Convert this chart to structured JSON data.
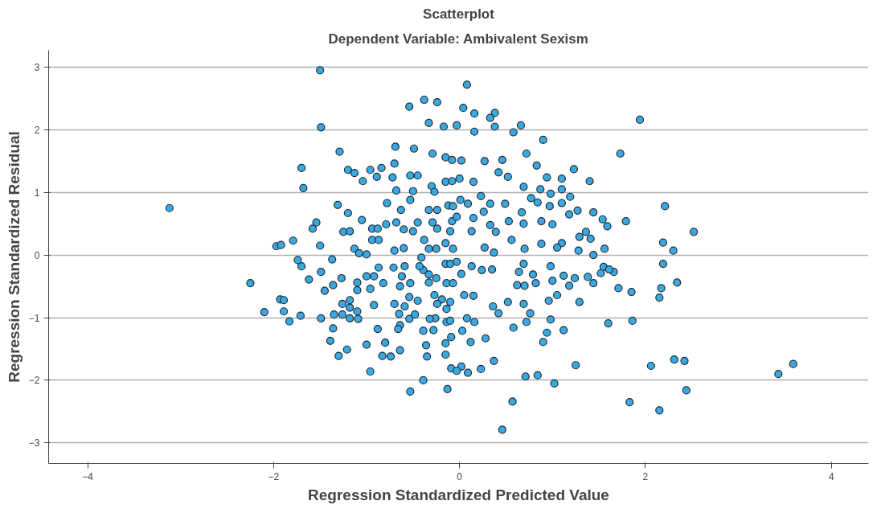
{
  "chart_data": {
    "type": "scatter",
    "title": "Scatterplot",
    "subtitle": "Dependent Variable: Ambivalent Sexism",
    "xlabel": "Regression Standardized Predicted Value",
    "ylabel": "Regression Standardized Residual",
    "xlim": [
      -4.42,
      4.4
    ],
    "ylim": [
      -3.33,
      3.27
    ],
    "xticks": [
      -4,
      -2,
      0,
      2,
      4
    ],
    "yticks": [
      -3,
      -2,
      -1,
      0,
      1,
      2,
      3
    ],
    "grid": "y",
    "marker": "circle",
    "series": [
      {
        "color": "#3ba8e0",
        "x": [
          -3.12,
          -2.25,
          -2.1,
          -1.93,
          -1.89,
          -1.89,
          -1.83,
          -1.71,
          -1.49,
          -1.62,
          -1.7,
          -1.74,
          -1.49,
          -1.37,
          -1.27,
          -1.45,
          -1.36,
          -1.1,
          -1.1,
          -1.0,
          -0.92,
          -0.96,
          -0.82,
          -0.87,
          -0.71,
          -0.59,
          -0.62,
          -0.53,
          -0.64,
          -1.26,
          -1.18,
          -1.18,
          -1.1,
          -1.26,
          -1.35,
          -1.18,
          -1.09,
          -1.36,
          -1.39,
          -1.21,
          -1.3,
          -1.0,
          -0.88,
          -0.8,
          -0.83,
          -0.74,
          -0.64,
          -0.96,
          -0.92,
          -0.7,
          -0.65,
          -0.59,
          -0.54,
          -0.45,
          -0.48,
          -0.54,
          -0.64,
          -0.66,
          -0.39,
          -0.36,
          -0.35,
          -0.39,
          -0.53,
          -0.13,
          -0.15,
          -0.15,
          -0.09,
          -0.09,
          0.02,
          -0.03,
          0.09,
          0.03,
          0.08,
          -0.14,
          -0.1,
          -0.26,
          -0.32,
          -0.28,
          -0.27,
          -0.19,
          -0.14,
          -0.1,
          -0.24,
          -0.33,
          -0.25,
          -0.14,
          -0.07,
          0.05,
          0.02,
          -0.39,
          -0.33,
          -0.43,
          -0.41,
          -0.15,
          -0.1,
          -0.03,
          -1.5,
          -1.49,
          -1.29,
          -1.7,
          -1.68,
          -0.54,
          -0.38,
          -0.24,
          0.08,
          0.04,
          -0.33,
          -0.17,
          -0.03,
          -0.69,
          -0.49,
          -0.29,
          -0.7,
          -0.15,
          -0.08,
          0.02,
          -1.2,
          -1.13,
          -1.04,
          -0.96,
          -0.84,
          -0.89,
          -0.72,
          -0.53,
          -0.45,
          -0.68,
          -0.5,
          -0.3,
          -0.15,
          -0.08,
          0.0,
          -0.27,
          -1.31,
          -1.2,
          -1.54,
          -1.58,
          -0.78,
          -0.63,
          -0.53,
          -1.05,
          -0.94,
          -0.79,
          -0.68,
          -0.6,
          -0.5,
          -0.45,
          -0.33,
          -0.24,
          -0.29,
          -0.24,
          -0.12,
          -0.07,
          0.01,
          -0.08,
          -0.03,
          -0.1,
          -1.79,
          -1.97,
          -1.92,
          -1.5,
          -1.13,
          -1.25,
          -1.18,
          -0.88,
          -0.94,
          -0.87,
          -0.38,
          -0.7,
          -0.6,
          -0.33,
          -0.25,
          -0.15,
          -0.07,
          -1.08,
          -1.0,
          1.94,
          1.73,
          2.21,
          1.79,
          2.52,
          2.19,
          2.3,
          1.4,
          1.23,
          0.9,
          0.72,
          0.66,
          0.58,
          0.38,
          0.38,
          0.16,
          0.33,
          0.16,
          0.46,
          0.27,
          0.42,
          0.52,
          0.15,
          0.94,
          1.1,
          1.1,
          0.83,
          0.69,
          0.87,
          1.19,
          0.98,
          1.27,
          1.44,
          1.54,
          1.59,
          1.36,
          1.41,
          1.29,
          1.56,
          1.44,
          1.28,
          1.1,
          1.05,
          0.88,
          0.7,
          0.56,
          0.37,
          0.27,
          0.88,
          0.69,
          0.53,
          0.33,
          0.39,
          0.13,
          0.23,
          0.09,
          0.33,
          0.49,
          0.67,
          0.77,
          0.84,
          0.97,
          1.1,
          1.18,
          1.0,
          0.26,
          0.15,
          2.19,
          2.34,
          2.15,
          2.17,
          1.85,
          1.71,
          1.86,
          1.6,
          2.31,
          2.42,
          2.06,
          2.44,
          1.83,
          2.15,
          1.25,
          1.02,
          0.71,
          0.84,
          0.57,
          0.46,
          0.37,
          0.23,
          1.12,
          0.9,
          0.94,
          0.98,
          0.72,
          0.58,
          0.28,
          0.12,
          0.16,
          3.43,
          3.59,
          0.35,
          0.13,
          0.24,
          0.15,
          0.36,
          0.42,
          0.52,
          0.62,
          0.69,
          0.76,
          0.82,
          0.7,
          0.64,
          0.79,
          0.98,
          1.0,
          0.96,
          1.05,
          1.12,
          1.24,
          1.18,
          1.29,
          1.38,
          1.44,
          1.52,
          1.55,
          1.66,
          1.61,
          0.69
        ],
        "values": [
          0.75,
          -0.45,
          -0.91,
          -0.71,
          -0.72,
          -0.9,
          -1.06,
          -0.97,
          -1.01,
          -0.39,
          -0.18,
          -0.08,
          -0.27,
          -0.07,
          -0.37,
          -0.57,
          -0.48,
          -0.44,
          -0.56,
          -0.34,
          -0.34,
          -0.54,
          -0.45,
          -0.2,
          -0.2,
          -0.18,
          -0.34,
          -0.45,
          -0.5,
          -0.78,
          -0.72,
          -0.84,
          -0.9,
          -0.95,
          -0.95,
          -1.01,
          -1.02,
          -1.17,
          -1.37,
          -1.51,
          -1.61,
          -1.43,
          -1.18,
          -1.4,
          -1.61,
          -1.62,
          -1.52,
          -1.86,
          -0.8,
          -0.78,
          -0.94,
          -0.82,
          -0.67,
          -0.73,
          -0.95,
          -1.02,
          -1.12,
          -1.18,
          -1.21,
          -1.44,
          -1.62,
          -2.0,
          -2.18,
          -2.14,
          -1.59,
          -1.41,
          -1.31,
          -1.81,
          -1.78,
          -1.85,
          -1.88,
          -1.21,
          -1.01,
          -1.07,
          -1.05,
          -1.01,
          -1.02,
          -1.2,
          -0.64,
          -0.71,
          -0.86,
          -0.75,
          -0.78,
          -0.44,
          -0.37,
          -0.45,
          -0.45,
          -0.64,
          -0.3,
          -0.24,
          -0.31,
          -0.18,
          -0.04,
          -0.14,
          -0.14,
          -0.11,
          2.95,
          2.04,
          1.65,
          1.39,
          1.07,
          2.37,
          2.48,
          2.44,
          2.72,
          2.35,
          2.11,
          2.05,
          2.07,
          1.73,
          1.7,
          1.62,
          1.46,
          1.56,
          1.52,
          1.51,
          1.36,
          1.31,
          1.18,
          1.36,
          1.39,
          1.25,
          1.24,
          1.27,
          1.27,
          1.03,
          1.02,
          1.1,
          1.17,
          1.18,
          1.22,
          1.01,
          0.8,
          0.67,
          0.52,
          0.42,
          0.83,
          0.72,
          0.88,
          0.56,
          0.42,
          0.49,
          0.52,
          0.41,
          0.38,
          0.52,
          0.72,
          0.72,
          0.52,
          0.42,
          0.79,
          0.78,
          0.88,
          0.54,
          0.61,
          0.38,
          0.23,
          0.14,
          0.16,
          0.15,
          0.1,
          0.37,
          0.38,
          0.42,
          0.24,
          0.24,
          0.24,
          0.07,
          0.11,
          0.1,
          0.1,
          0.19,
          0.1,
          0.03,
          0.01,
          2.16,
          1.62,
          0.78,
          0.54,
          0.37,
          0.2,
          0.07,
          1.18,
          1.37,
          1.84,
          1.62,
          2.07,
          1.96,
          2.05,
          2.27,
          2.26,
          2.19,
          1.97,
          1.52,
          1.5,
          1.32,
          1.25,
          1.17,
          1.24,
          1.22,
          1.05,
          1.43,
          1.09,
          1.05,
          0.93,
          0.98,
          0.71,
          0.68,
          0.57,
          0.46,
          0.37,
          0.26,
          0.29,
          0.1,
          0.0,
          0.07,
          0.19,
          0.12,
          0.18,
          0.1,
          0.24,
          0.04,
          0.12,
          0.54,
          0.5,
          0.54,
          0.48,
          0.37,
          0.38,
          0.94,
          0.82,
          0.82,
          0.82,
          0.68,
          0.91,
          0.84,
          0.78,
          0.83,
          0.65,
          0.49,
          0.69,
          0.59,
          -0.14,
          -0.44,
          -0.68,
          -0.53,
          -0.59,
          -0.53,
          -1.05,
          -1.09,
          -1.67,
          -1.69,
          -1.77,
          -2.16,
          -2.35,
          -2.48,
          -1.76,
          -2.05,
          -1.94,
          -1.92,
          -2.34,
          -2.79,
          -1.69,
          -1.82,
          -1.2,
          -1.39,
          -1.24,
          -1.03,
          -1.07,
          -1.16,
          -1.33,
          -1.39,
          -1.07,
          -1.9,
          -1.74,
          -0.23,
          -0.18,
          -0.24,
          -0.65,
          -0.82,
          -0.93,
          -0.75,
          -0.48,
          -0.78,
          -0.93,
          -0.45,
          -0.49,
          -0.27,
          -0.31,
          -0.18,
          -0.41,
          -0.73,
          -0.64,
          -0.33,
          -0.37,
          -0.49,
          -0.75,
          -0.35,
          -0.45,
          -0.29,
          -0.19,
          -0.27,
          -0.23,
          -0.14
        ]
      }
    ]
  }
}
